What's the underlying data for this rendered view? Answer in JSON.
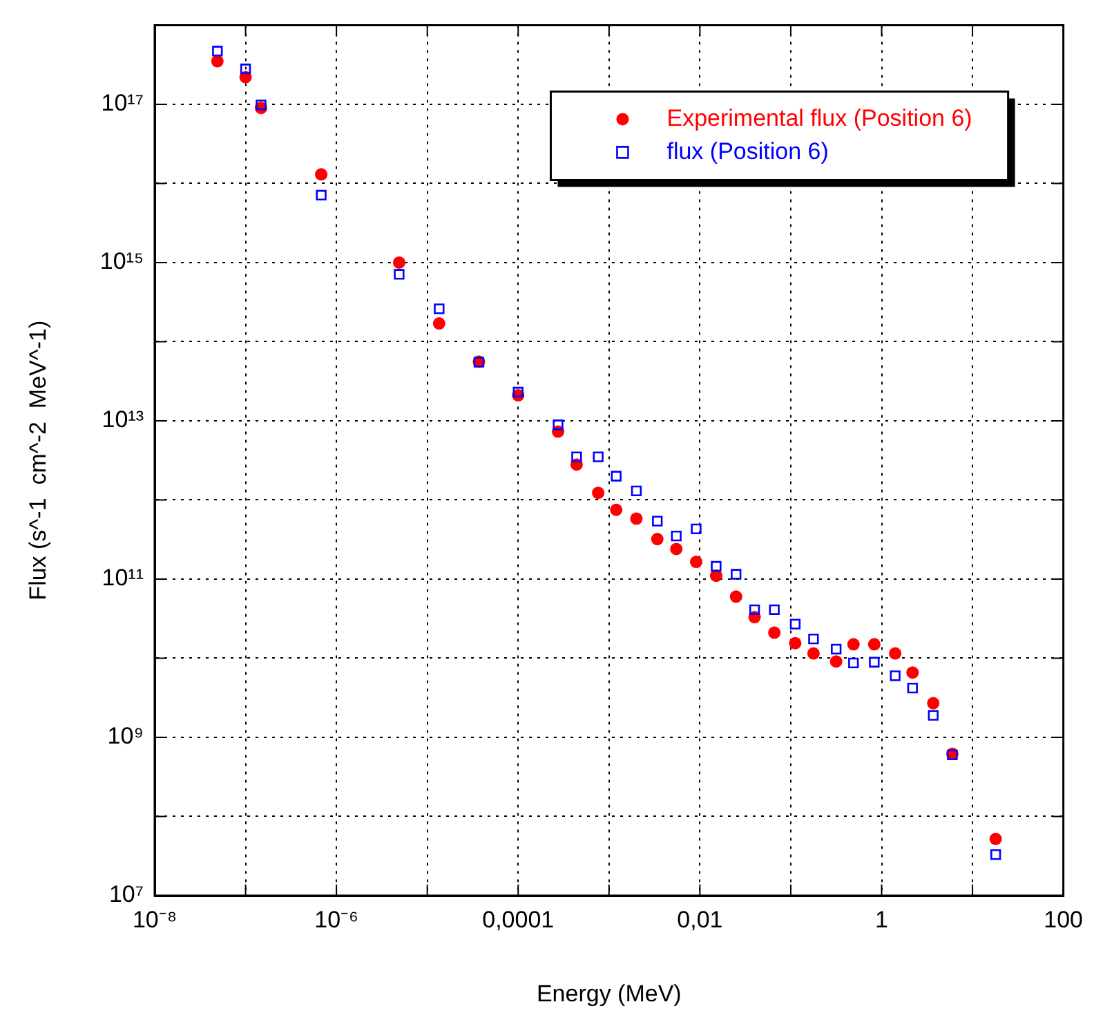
{
  "chart_data": {
    "type": "scatter",
    "xlabel": "Energy (MeV)",
    "ylabel": "Flux (s^-1  cm^-2  MeV^-1)",
    "log": "xy",
    "grid": true,
    "legend": "top right",
    "xlim": [
      1e-08,
      100
    ],
    "xticks": [
      {
        "value": 1e-08,
        "label": "10⁻⁸"
      },
      {
        "value": 1e-07,
        "label": null
      },
      {
        "value": 1e-06,
        "label": "10⁻⁶"
      },
      {
        "value": 1e-05,
        "label": null
      },
      {
        "value": 0.0001,
        "label": "0,0001"
      },
      {
        "value": 0.001,
        "label": null
      },
      {
        "value": 0.01,
        "label": "0,01"
      },
      {
        "value": 0.1,
        "label": null
      },
      1,
      {
        "value": 10,
        "label": null
      },
      100
    ],
    "ylim": [
      10000000.0,
      1e+18
    ],
    "yticks": [
      {
        "value": 10000000.0,
        "label": "10⁷"
      },
      {
        "value": 100000000.0,
        "label": null
      },
      {
        "value": 1000000000.0,
        "label": "10⁹"
      },
      {
        "value": 10000000000.0,
        "label": null
      },
      {
        "value": 100000000000.0,
        "label": "10¹¹"
      },
      {
        "value": 1000000000000.0,
        "label": null
      },
      {
        "value": 10000000000000.0,
        "label": "10¹³"
      },
      {
        "value": 100000000000000.0,
        "label": null
      },
      {
        "value": 1000000000000000.0,
        "label": "10¹⁵"
      },
      {
        "value": 1e+16,
        "label": null
      },
      {
        "value": 1e+17,
        "label": "10¹⁷"
      },
      {
        "value": 1e+18,
        "label": null
      }
    ],
    "x": [
      4.9e-08,
      1e-07,
      1.48e-07,
      6.8e-07,
      4.9e-06,
      1.35e-05,
      3.7e-05,
      0.0001,
      0.000275,
      0.00044,
      0.00076,
      0.0012,
      0.002,
      0.0034,
      0.0055,
      0.0091,
      0.0151,
      0.025,
      0.04,
      0.066,
      0.112,
      0.178,
      0.316,
      0.49,
      0.83,
      1.41,
      2.19,
      3.7,
      6.0,
      18
    ],
    "series": [
      {
        "name": "Experimental flux (Position 6)",
        "color": "#ff0000",
        "marker": "circle",
        "values": [
          3.5e+17,
          2.2e+17,
          9e+16,
          1.3e+16,
          1000000000000000.0,
          170000000000000.0,
          56000000000000.0,
          21000000000000.0,
          7300000000000.0,
          2800000000000.0,
          1230000000000.0,
          750000000000.0,
          580000000000.0,
          320000000000.0,
          240000000000.0,
          165000000000.0,
          110000000000.0,
          60000000000.0,
          33000000000.0,
          21000000000.0,
          15500000000.0,
          11500000000.0,
          9100000000.0,
          15000000000.0,
          15000000000.0,
          11500000000.0,
          6600000000.0,
          2700000000.0,
          620000000.0,
          52000000.0
        ]
      },
      {
        "name": "flux (Position 6)",
        "color": "#0000ff",
        "marker": "square",
        "values": [
          4.7e+17,
          2.8e+17,
          9.8e+16,
          7100000000000000.0,
          710000000000000.0,
          260000000000000.0,
          55000000000000.0,
          23000000000000.0,
          8900000000000.0,
          3500000000000.0,
          3500000000000.0,
          2000000000000.0,
          1300000000000.0,
          540000000000.0,
          350000000000.0,
          430000000000.0,
          145000000000.0,
          115000000000.0,
          41000000000.0,
          41000000000.0,
          27000000000.0,
          17500000000.0,
          13000000000.0,
          8700000000.0,
          8900000000.0,
          6000000000.0,
          4200000000.0,
          1900000000.0,
          600000000.0,
          33000000.0
        ]
      }
    ]
  }
}
